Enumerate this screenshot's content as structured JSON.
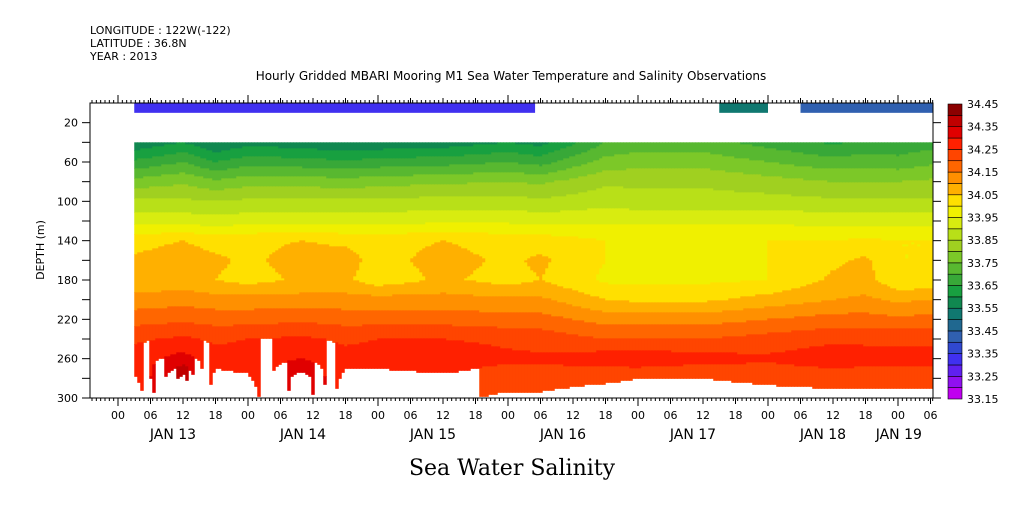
{
  "chart_data": {
    "type": "heatmap",
    "header": [
      "LONGITUDE : 122W(-122)",
      "LATITUDE : 36.8N",
      "YEAR : 2013"
    ],
    "title": "Hourly Gridded MBARI Mooring M1 Sea Water Temperature and Salinity Observations",
    "variable_label": "Sea Water Salinity",
    "ylabel": "DEPTH (m)",
    "ylim": [
      0,
      300
    ],
    "yticks": [
      20,
      60,
      100,
      140,
      180,
      220,
      260,
      300
    ],
    "xlim_hours_from_jan13_00": [
      -5.2,
      150.5
    ],
    "xtick_hour_labels": [
      "00",
      "06",
      "12",
      "18",
      "00",
      "06",
      "12",
      "18",
      "00",
      "06",
      "12",
      "18",
      "00",
      "06",
      "12",
      "18",
      "00",
      "06",
      "12",
      "18",
      "00",
      "06",
      "12",
      "18",
      "00",
      "06"
    ],
    "day_labels": [
      {
        "label": "JAN 13",
        "hour": 12
      },
      {
        "label": "JAN 14",
        "hour": 36
      },
      {
        "label": "JAN 15",
        "hour": 60
      },
      {
        "label": "JAN 16",
        "hour": 84
      },
      {
        "label": "JAN 17",
        "hour": 108
      },
      {
        "label": "JAN 18",
        "hour": 132
      },
      {
        "label": "JAN 19",
        "hour": 146
      }
    ],
    "colorbar": {
      "min": 33.15,
      "max": 34.45,
      "step": 0.05,
      "labels": [
        "34.45",
        "34.35",
        "34.25",
        "34.15",
        "34.05",
        "33.95",
        "33.85",
        "33.75",
        "33.65",
        "33.55",
        "33.45",
        "33.35",
        "33.25",
        "33.15"
      ],
      "colors_low_to_high": [
        "#c000f0",
        "#9010f0",
        "#6020f0",
        "#4030f0",
        "#3048d0",
        "#3060b0",
        "#206890",
        "#107870",
        "#108850",
        "#18a040",
        "#38a838",
        "#58b830",
        "#7cc828",
        "#a0d020",
        "#b8e018",
        "#d8ec10",
        "#f0f000",
        "#ffe000",
        "#ffb000",
        "#ff9000",
        "#ff6600",
        "#ff4500",
        "#ff2000",
        "#e00000",
        "#c00000",
        "#8b0000"
      ]
    },
    "surface_layer": {
      "depth_range": [
        0,
        10
      ],
      "segments": [
        {
          "start_hour": 3,
          "end_hour": 77,
          "value": 33.32
        },
        {
          "start_hour": 111,
          "end_hour": 120,
          "value": 33.5
        },
        {
          "start_hour": 126,
          "end_hour": 150.5,
          "value": 33.44
        }
      ]
    },
    "depths": [
      40,
      60,
      80,
      100,
      120,
      140,
      160,
      180,
      200,
      220,
      240,
      260,
      280,
      300
    ],
    "times_hours_from_jan13_00": [
      3,
      12,
      18,
      24,
      34,
      42,
      48,
      60,
      72,
      78,
      90,
      96,
      108,
      120,
      132,
      138,
      144,
      150.5
    ],
    "values": [
      [
        33.56,
        33.66,
        33.77,
        33.86,
        33.93,
        34.03,
        34.06,
        34.06,
        34.12,
        34.18,
        34.24,
        34.28,
        34.24,
        34.2
      ],
      [
        33.6,
        33.7,
        33.79,
        33.86,
        33.93,
        34.05,
        34.08,
        34.07,
        34.13,
        34.19,
        34.26,
        34.32,
        34.42,
        34.44
      ],
      [
        33.55,
        33.65,
        33.76,
        33.85,
        33.92,
        34.03,
        34.06,
        34.05,
        34.12,
        34.18,
        34.24,
        34.27,
        34.23,
        34.2
      ],
      [
        33.58,
        33.68,
        33.78,
        33.86,
        33.93,
        34.04,
        34.04,
        34.03,
        34.12,
        34.18,
        34.25,
        34.28,
        34.24,
        34.21
      ],
      [
        33.57,
        33.67,
        33.78,
        33.86,
        33.93,
        34.05,
        34.07,
        34.06,
        34.12,
        34.19,
        34.26,
        34.3,
        34.38,
        34.4
      ],
      [
        33.55,
        33.66,
        33.77,
        33.86,
        33.93,
        34.04,
        34.07,
        34.06,
        34.12,
        34.18,
        34.24,
        34.27,
        34.23,
        34.2
      ],
      [
        33.56,
        33.67,
        33.78,
        33.86,
        33.93,
        34.03,
        34.03,
        34.02,
        34.12,
        34.18,
        34.25,
        34.27,
        34.23,
        34.2
      ],
      [
        33.57,
        33.68,
        33.79,
        33.87,
        33.94,
        34.05,
        34.07,
        34.06,
        34.12,
        34.18,
        34.25,
        34.28,
        34.24,
        34.21
      ],
      [
        33.6,
        33.7,
        33.8,
        33.87,
        33.94,
        34.03,
        34.04,
        34.03,
        34.11,
        34.17,
        34.24,
        34.26,
        34.22,
        34.19
      ],
      [
        33.58,
        33.68,
        33.79,
        33.86,
        33.93,
        34.03,
        34.06,
        34.05,
        34.11,
        34.17,
        34.23,
        34.26,
        34.22,
        34.19
      ],
      [
        33.7,
        33.77,
        33.84,
        33.88,
        33.94,
        34.0,
        34.0,
        33.99,
        34.05,
        34.13,
        34.2,
        34.28,
        34.21,
        34.17
      ],
      [
        33.72,
        33.78,
        33.84,
        33.87,
        33.94,
        34.0,
        33.99,
        33.99,
        34.04,
        34.13,
        34.2,
        34.29,
        34.2,
        34.17
      ],
      [
        33.72,
        33.78,
        33.84,
        33.87,
        33.94,
        34.0,
        33.99,
        33.99,
        34.04,
        34.13,
        34.2,
        34.27,
        34.2,
        34.17
      ],
      [
        33.68,
        33.75,
        33.82,
        33.87,
        33.94,
        34.0,
        34.0,
        34.0,
        34.07,
        34.15,
        34.22,
        34.26,
        34.21,
        34.18
      ],
      [
        33.64,
        33.72,
        33.8,
        33.86,
        33.93,
        34.0,
        34.04,
        34.06,
        34.1,
        34.17,
        34.24,
        34.28,
        34.22,
        34.18
      ],
      [
        33.66,
        33.73,
        33.8,
        33.86,
        33.93,
        34.01,
        34.06,
        34.07,
        34.11,
        34.17,
        34.24,
        34.27,
        34.22,
        34.18
      ],
      [
        33.66,
        33.72,
        33.8,
        33.86,
        33.93,
        34.0,
        34.0,
        34.01,
        34.09,
        34.16,
        34.24,
        34.27,
        34.22,
        34.18
      ],
      [
        33.68,
        33.74,
        33.81,
        33.86,
        33.93,
        34.0,
        34.0,
        34.01,
        34.1,
        34.17,
        34.24,
        34.27,
        34.22,
        34.18
      ]
    ]
  }
}
